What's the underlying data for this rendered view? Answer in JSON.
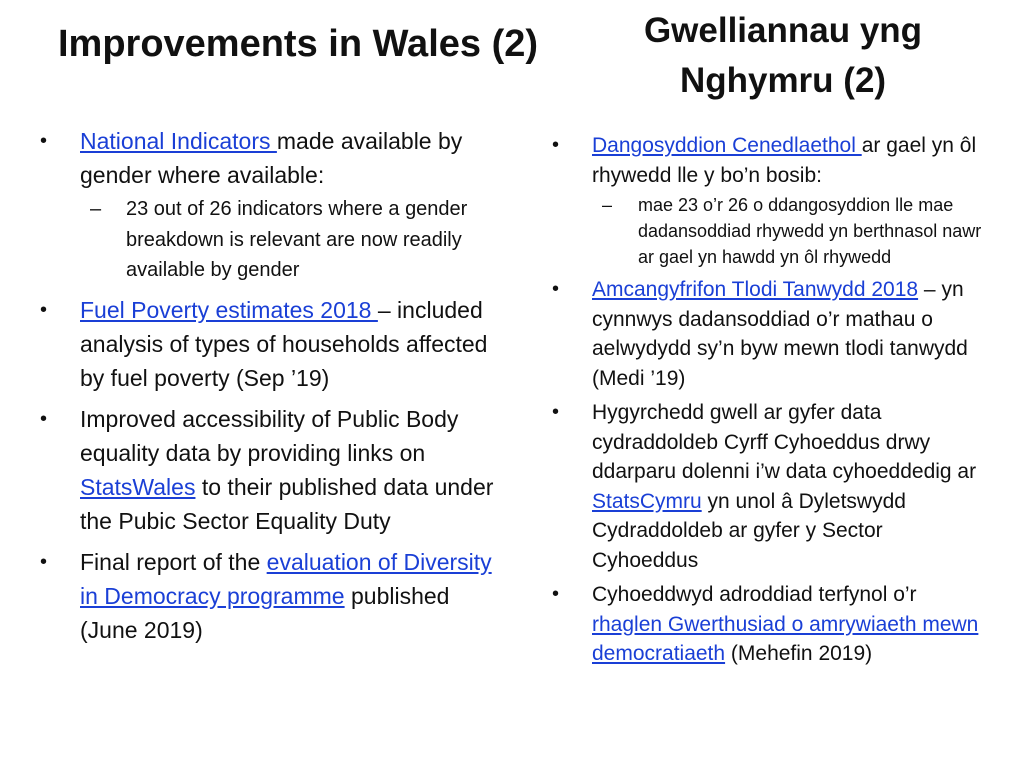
{
  "english": {
    "title": "Improvements in Wales (2)",
    "item1": {
      "link": "National Indicators ",
      "text": "made available by gender where available:",
      "sub": "23 out of 26 indicators where a gender breakdown is relevant are now readily available by gender"
    },
    "item2": {
      "link": "Fuel Poverty estimates 2018 ",
      "text": "– included analysis of types of households affected by fuel poverty (Sep ’19)"
    },
    "item3": {
      "text_before": "Improved accessibility of Public Body equality data by providing links on ",
      "link": "StatsWales",
      "text_after": " to their published data under the Pubic Sector Equality Duty"
    },
    "item4": {
      "text_before": "Final report of the ",
      "link": "evaluation of Diversity in Democracy programme",
      "text_after": " published (June 2019)"
    }
  },
  "welsh": {
    "title": "Gwelliannau yng Nghymru (2)",
    "item1": {
      "link": "Dangosyddion Cenedlaethol ",
      "text": "ar gael yn ôl rhywedd lle y bo’n bosib:",
      "sub": "mae 23 o’r 26 o ddangosyddion lle mae dadansoddiad rhywedd yn berthnasol nawr ar gael yn hawdd yn ôl rhywedd"
    },
    "item2": {
      "link": "Amcangyfrifon Tlodi Tanwydd 2018",
      "text": " – yn cynnwys dadansoddiad o’r mathau o aelwydydd sy’n byw mewn tlodi tanwydd  (Medi ’19)"
    },
    "item3": {
      "text_before": "Hygyrchedd gwell ar gyfer data cydraddoldeb Cyrff Cyhoeddus drwy ddarparu dolenni i’w data cyhoeddedig ar ",
      "link": "StatsCymru",
      "text_after": " yn unol â Dyletswydd Cydraddoldeb ar gyfer y Sector Cyhoeddus"
    },
    "item4": {
      "text_before": "Cyhoeddwyd adroddiad terfynol o’r ",
      "link": "rhaglen Gwerthusiad o amrywiaeth mewn democratiaeth",
      "text_after": " (Mehefin 2019)"
    }
  }
}
